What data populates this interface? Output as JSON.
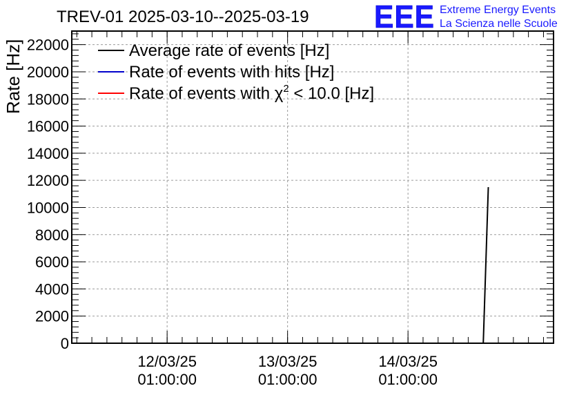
{
  "chart_data": {
    "type": "line",
    "title": "TREV-01 2025-03-10--2025-03-19",
    "ylabel": "Rate [Hz]",
    "xlabel": "",
    "ylim": [
      0,
      23000
    ],
    "yticks": [
      "0",
      "2000",
      "4000",
      "6000",
      "8000",
      "10000",
      "12000",
      "14000",
      "16000",
      "18000",
      "20000",
      "22000"
    ],
    "ytick_values": [
      0,
      2000,
      4000,
      6000,
      8000,
      10000,
      12000,
      14000,
      16000,
      18000,
      20000,
      22000
    ],
    "xlim": [
      "2025-03-11 06:00:00",
      "2025-03-15 06:00:00"
    ],
    "xticks": [
      {
        "date": "12/03/25",
        "time": "01:00:00",
        "at": "2025-03-12 01:00:00"
      },
      {
        "date": "13/03/25",
        "time": "01:00:00",
        "at": "2025-03-13 01:00:00"
      },
      {
        "date": "14/03/25",
        "time": "01:00:00",
        "at": "2025-03-14 01:00:00"
      }
    ],
    "grid": true,
    "legend_position": "top-left",
    "series": [
      {
        "name": "Average rate of events [Hz]",
        "color": "#000000",
        "points": [
          {
            "x": "2025-03-11 12:00:00",
            "y": 0
          },
          {
            "x": "2025-03-14 16:00:00",
            "y": 0
          },
          {
            "x": "2025-03-14 17:00:00",
            "y": 11500
          }
        ]
      },
      {
        "name": "Rate of events with hits [Hz]",
        "color": "#0000cc",
        "points": [
          {
            "x": "2025-03-11 12:00:00",
            "y": 0
          },
          {
            "x": "2025-03-14 16:00:00",
            "y": 0
          }
        ]
      },
      {
        "name_prefix": "Rate of events with ",
        "name_symbol": "χ",
        "name_sup": "2",
        "name_suffix": " < 10.0 [Hz]",
        "color": "#ff0000",
        "points": [
          {
            "x": "2025-03-11 12:00:00",
            "y": 0
          },
          {
            "x": "2025-03-14 16:00:00",
            "y": 0
          }
        ]
      }
    ]
  },
  "logo": {
    "letters": "EEE",
    "line1": "Extreme Energy Events",
    "line2": "La Scienza nelle Scuole",
    "color": "#1a1aff"
  }
}
